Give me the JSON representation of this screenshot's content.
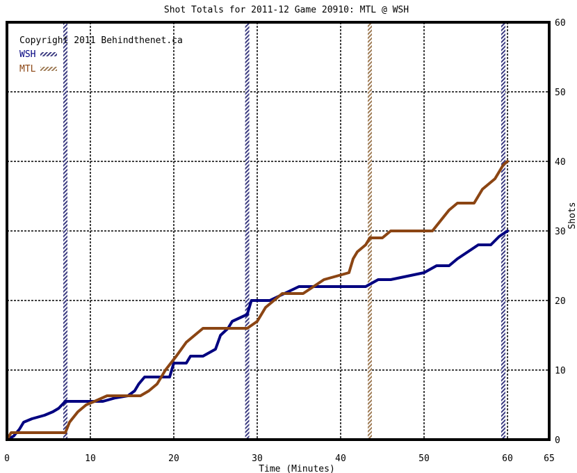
{
  "chart_data": {
    "type": "line",
    "title": "Shot Totals for 2011-12 Game 20910: MTL @ WSH",
    "xlabel": "Time (Minutes)",
    "ylabel": "Shots",
    "xlim": [
      0,
      65
    ],
    "ylim": [
      0,
      60
    ],
    "x_ticks": [
      0,
      10,
      20,
      30,
      40,
      50,
      60,
      65
    ],
    "y_ticks": [
      0,
      10,
      20,
      30,
      40,
      50,
      60
    ],
    "y_axis_side": "right",
    "grid": true,
    "legend_position": "top-left",
    "copyright": "Copyright 2011 Behindthenet.ca",
    "series": [
      {
        "name": "WSH",
        "color": "#000080",
        "points": [
          [
            0,
            0
          ],
          [
            0.8,
            0.5
          ],
          [
            1.5,
            1.5
          ],
          [
            2,
            2.5
          ],
          [
            3,
            3
          ],
          [
            4.5,
            3.5
          ],
          [
            5.5,
            4
          ],
          [
            6.2,
            4.5
          ],
          [
            7,
            5.5
          ],
          [
            10,
            5.5
          ],
          [
            11.5,
            5.5
          ],
          [
            13,
            6
          ],
          [
            14.5,
            6.3
          ],
          [
            15.3,
            7
          ],
          [
            15.8,
            8
          ],
          [
            16.5,
            9
          ],
          [
            19.5,
            9
          ],
          [
            20,
            11
          ],
          [
            21.5,
            11
          ],
          [
            22,
            12
          ],
          [
            23.5,
            12
          ],
          [
            25,
            13
          ],
          [
            25.6,
            15
          ],
          [
            26.5,
            16
          ],
          [
            27,
            17
          ],
          [
            28.8,
            18
          ],
          [
            29.3,
            20
          ],
          [
            31.5,
            20
          ],
          [
            35,
            22
          ],
          [
            43,
            22
          ],
          [
            44.5,
            23
          ],
          [
            46,
            23
          ],
          [
            50,
            24
          ],
          [
            51.5,
            25
          ],
          [
            53,
            25
          ],
          [
            54,
            26
          ],
          [
            56.5,
            28
          ],
          [
            58,
            28
          ],
          [
            59,
            29.2
          ],
          [
            60,
            30
          ]
        ]
      },
      {
        "name": "MTL",
        "color": "#8b4513",
        "points": [
          [
            0,
            0
          ],
          [
            0.5,
            1
          ],
          [
            7,
            1
          ],
          [
            7.5,
            2.5
          ],
          [
            8.5,
            4
          ],
          [
            9.5,
            5
          ],
          [
            10.5,
            5.5
          ],
          [
            12,
            6.3
          ],
          [
            16,
            6.3
          ],
          [
            17,
            7
          ],
          [
            18,
            8
          ],
          [
            19,
            10
          ],
          [
            20.3,
            12
          ],
          [
            21.5,
            14
          ],
          [
            22.5,
            15
          ],
          [
            23.5,
            16
          ],
          [
            28.8,
            16
          ],
          [
            30,
            17
          ],
          [
            31,
            19
          ],
          [
            33,
            21
          ],
          [
            35.5,
            21
          ],
          [
            38,
            23
          ],
          [
            41,
            24
          ],
          [
            41.5,
            26
          ],
          [
            42,
            27
          ],
          [
            43,
            28
          ],
          [
            43.5,
            29
          ],
          [
            45,
            29
          ],
          [
            46,
            30
          ],
          [
            51,
            30
          ],
          [
            52,
            31.5
          ],
          [
            53,
            33
          ],
          [
            54,
            34
          ],
          [
            56,
            34
          ],
          [
            57,
            36
          ],
          [
            58.5,
            37.5
          ],
          [
            59.5,
            39.5
          ],
          [
            60,
            40
          ]
        ]
      }
    ],
    "period_markers": [
      {
        "x": 7,
        "team": "WSH",
        "color": "#3a3a80"
      },
      {
        "x": 28.8,
        "team": "WSH",
        "color": "#3a3a80"
      },
      {
        "x": 43.5,
        "team": "MTL",
        "color": "#9e7b55"
      },
      {
        "x": 59.5,
        "team": "WSH",
        "color": "#3a3a80"
      }
    ]
  }
}
